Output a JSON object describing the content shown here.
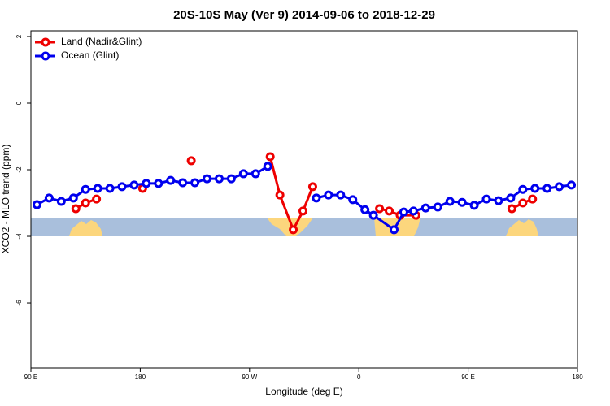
{
  "chart_data": {
    "type": "line",
    "title": "20S-10S May (Ver 9)   2014-09-06 to 2018-12-29",
    "xlabel": "Longitude (deg E)",
    "ylabel": "XCO2 - MLO trend (ppm)",
    "xlim": [
      90,
      540
    ],
    "xticks": [
      {
        "value": 90,
        "label": "90 E"
      },
      180,
      {
        "value": 270,
        "label": "90 W"
      },
      {
        "value": 360,
        "label": "0"
      },
      {
        "value": 450,
        "label": "90 E"
      },
      {
        "value": 540,
        "label": "180"
      }
    ],
    "ylim": [
      -7.95,
      2.17
    ],
    "yticks": [
      2,
      0,
      -2,
      -4,
      -6
    ],
    "legend": "top-left",
    "series": [
      {
        "name": "Land (Nadir&Glint)",
        "color": "#ee0000",
        "x": [
          127,
          135,
          144,
          null,
          182,
          null,
          222,
          null,
          287,
          295,
          306,
          314,
          322,
          null,
          377,
          385,
          394,
          407,
          null,
          486,
          495,
          503
        ],
        "values": [
          -3.17,
          -3.0,
          -2.88,
          null,
          -2.56,
          null,
          -1.73,
          null,
          -1.61,
          -2.76,
          -3.8,
          -3.24,
          -2.51,
          null,
          -3.17,
          -3.24,
          -3.37,
          -3.37,
          null,
          -3.17,
          -3.0,
          -2.88
        ]
      },
      {
        "name": "Ocean (Glint)",
        "color": "#0000ee",
        "x": [
          95,
          105,
          115,
          125,
          135,
          145,
          155,
          165,
          175,
          185,
          195,
          205,
          215,
          225,
          235,
          245,
          255,
          265,
          275,
          285,
          null,
          325,
          335,
          345,
          355,
          365,
          372,
          389,
          397,
          405,
          415,
          425,
          435,
          445,
          455,
          465,
          475,
          485,
          495,
          505,
          515,
          525,
          535
        ],
        "values": [
          -3.05,
          -2.85,
          -2.95,
          -2.85,
          -2.59,
          -2.56,
          -2.56,
          -2.51,
          -2.46,
          -2.41,
          -2.41,
          -2.32,
          -2.39,
          -2.39,
          -2.27,
          -2.27,
          -2.27,
          -2.12,
          -2.12,
          -1.9,
          null,
          -2.85,
          -2.76,
          -2.76,
          -2.9,
          -3.2,
          -3.37,
          -3.8,
          -3.27,
          -3.24,
          -3.15,
          -3.12,
          -2.95,
          -2.98,
          -3.07,
          -2.88,
          -2.93,
          -2.85,
          -2.59,
          -2.56,
          -2.56,
          -2.51,
          -2.46
        ]
      }
    ]
  }
}
